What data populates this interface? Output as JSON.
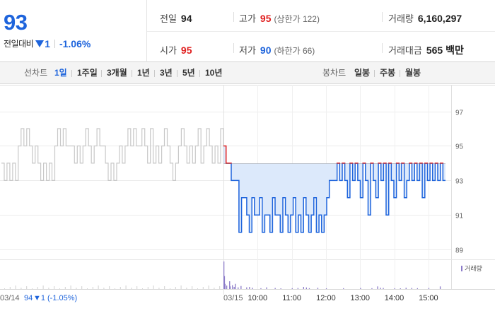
{
  "summary": {
    "current_price": "93",
    "change_label": "전일대비",
    "change_amount": "1",
    "change_rate": "-1.06%",
    "prev_close": {
      "label": "전일",
      "value": "94"
    },
    "open": {
      "label": "시가",
      "value": "95"
    },
    "high": {
      "label": "고가",
      "value": "95",
      "limit_text": "(상한가 122)"
    },
    "low": {
      "label": "저가",
      "value": "90",
      "limit_text": "(하한가 66)"
    },
    "volume": {
      "label": "거래량",
      "value": "6,160,297"
    },
    "trade_value": {
      "label": "거래대금",
      "value": "565 백만"
    }
  },
  "colors": {
    "up": "#e02020",
    "down": "#1e64dc",
    "volume": "#8b7bc8",
    "area_fill": "#dce9fb",
    "prev_day_line": "#c8c8c8"
  },
  "period_bar": {
    "line_label": "선차트",
    "line_periods": [
      "1일",
      "1주일",
      "3개월",
      "1년",
      "3년",
      "5년",
      "10년"
    ],
    "active_period": "1일",
    "candle_label": "봉차트",
    "candle_periods": [
      "일봉",
      "주봉",
      "월봉"
    ]
  },
  "chart_data": {
    "type": "line",
    "y_ticks": [
      "97",
      "95",
      "93",
      "91",
      "89"
    ],
    "ylim": [
      88.6,
      97.8
    ],
    "grid": true,
    "prev_day": {
      "label": "03/14",
      "close": "94",
      "change": "▼1",
      "change_rate": "(-1.05%)"
    },
    "day_label": "03/15",
    "x_ticks": [
      "10:00",
      "11:00",
      "12:00",
      "13:00",
      "14:00",
      "15:00"
    ],
    "reference_price": 94,
    "prev_day_series": [
      94,
      93,
      94,
      93,
      94,
      93,
      95,
      96,
      95,
      96,
      95,
      94,
      95,
      94,
      93,
      94,
      93,
      94,
      93,
      95,
      96,
      95,
      96,
      95,
      95,
      95,
      94,
      95,
      94,
      95,
      96,
      95,
      94,
      95,
      96,
      95,
      95,
      94,
      93,
      94,
      93,
      94,
      95,
      94,
      95,
      96,
      95,
      96,
      95,
      95,
      96,
      95,
      94,
      96,
      94,
      95,
      94,
      95,
      96,
      95,
      94,
      93,
      94,
      95,
      96,
      95,
      94,
      95,
      94,
      95,
      96,
      94,
      95,
      96,
      95,
      94,
      95,
      94,
      96,
      94
    ],
    "today_series": [
      95,
      94,
      94,
      93,
      93,
      93,
      90,
      92,
      92,
      91,
      90,
      92,
      91,
      91,
      92,
      90,
      91,
      91,
      90,
      92,
      91,
      91,
      90,
      92,
      91,
      90,
      91,
      92,
      90,
      91,
      90,
      92,
      91,
      90,
      91,
      92,
      90,
      91,
      90,
      91,
      92,
      93,
      93,
      93,
      94,
      93,
      94,
      93,
      92,
      94,
      93,
      94,
      93,
      92,
      94,
      93,
      91,
      94,
      93,
      92,
      94,
      93,
      94,
      91,
      94,
      93,
      92,
      94,
      93,
      94,
      92,
      93,
      94,
      93,
      94,
      93,
      94,
      92,
      94,
      93,
      94,
      93,
      94,
      93,
      94,
      93,
      93
    ],
    "volume_series": [
      {
        "t": "09:00",
        "v": 320
      },
      {
        "t": "09:01",
        "v": 150
      },
      {
        "t": "09:02",
        "v": 60
      },
      {
        "t": "09:05",
        "v": 40
      },
      {
        "t": "09:10",
        "v": 90
      },
      {
        "t": "09:11",
        "v": 30
      },
      {
        "t": "09:15",
        "v": 45
      },
      {
        "t": "09:18",
        "v": 25
      },
      {
        "t": "09:20",
        "v": 60
      },
      {
        "t": "09:25",
        "v": 20
      },
      {
        "t": "09:30",
        "v": 35
      },
      {
        "t": "09:40",
        "v": 20
      },
      {
        "t": "09:45",
        "v": 25
      },
      {
        "t": "09:50",
        "v": 15
      },
      {
        "t": "10:05",
        "v": 10
      },
      {
        "t": "10:15",
        "v": 20
      },
      {
        "t": "10:30",
        "v": 12
      },
      {
        "t": "10:40",
        "v": 8
      },
      {
        "t": "11:00",
        "v": 10
      },
      {
        "t": "11:10",
        "v": 12
      },
      {
        "t": "11:20",
        "v": 25
      },
      {
        "t": "11:25",
        "v": 18
      },
      {
        "t": "11:30",
        "v": 10
      },
      {
        "t": "11:45",
        "v": 15
      },
      {
        "t": "12:00",
        "v": 8
      },
      {
        "t": "12:30",
        "v": 10
      },
      {
        "t": "13:00",
        "v": 12
      },
      {
        "t": "13:20",
        "v": 10
      },
      {
        "t": "13:30",
        "v": 30
      },
      {
        "t": "13:35",
        "v": 15
      },
      {
        "t": "13:40",
        "v": 12
      },
      {
        "t": "14:00",
        "v": 10
      },
      {
        "t": "14:10",
        "v": 8
      },
      {
        "t": "14:20",
        "v": 15
      },
      {
        "t": "14:30",
        "v": 12
      },
      {
        "t": "14:40",
        "v": 10
      },
      {
        "t": "15:00",
        "v": 12
      },
      {
        "t": "15:20",
        "v": 30
      }
    ],
    "volume_legend": "거래량"
  }
}
